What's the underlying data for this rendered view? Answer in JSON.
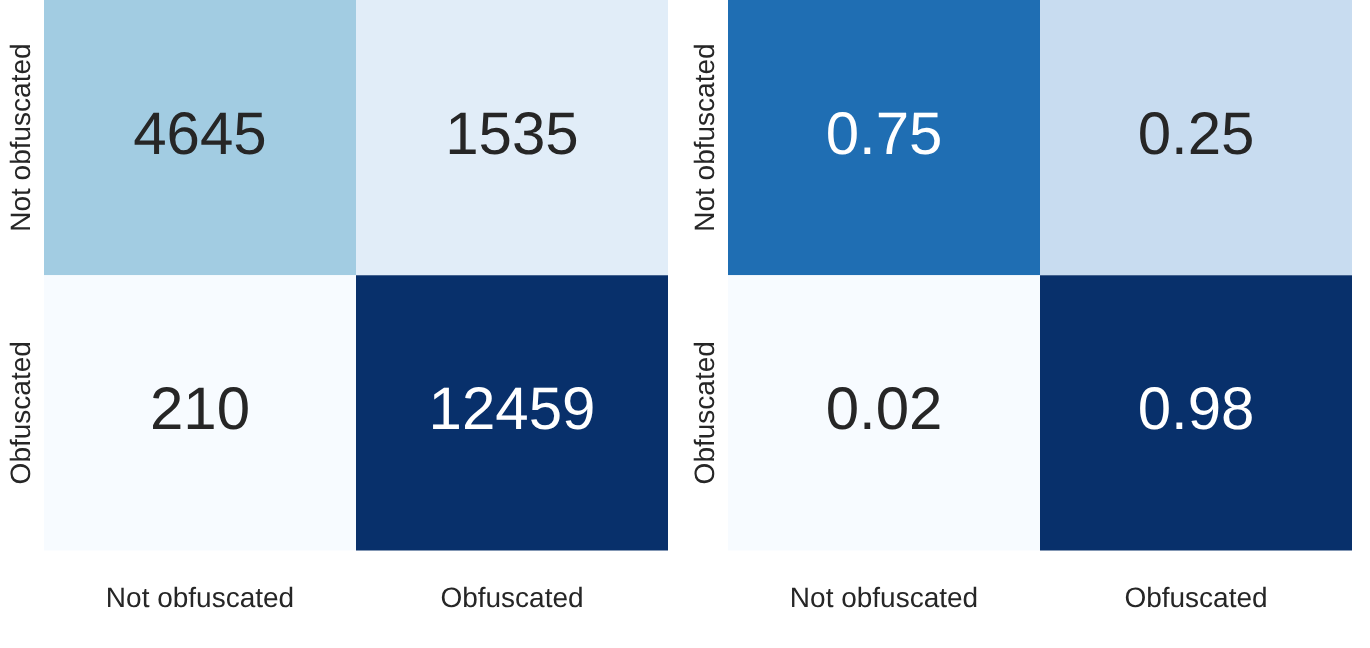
{
  "chart_data": [
    {
      "type": "heatmap",
      "categories": [
        "Not obfuscated",
        "Obfuscated"
      ],
      "y_categories": [
        "Not obfuscated",
        "Obfuscated"
      ],
      "cells": [
        [
          4645,
          1535
        ],
        [
          210,
          12459
        ]
      ],
      "data_labels": true
    },
    {
      "type": "heatmap",
      "categories": [
        "Not obfuscated",
        "Obfuscated"
      ],
      "y_categories": [
        "Not obfuscated",
        "Obfuscated"
      ],
      "cells": [
        [
          0.75,
          0.25
        ],
        [
          0.02,
          0.98
        ]
      ],
      "data_labels": true
    }
  ]
}
